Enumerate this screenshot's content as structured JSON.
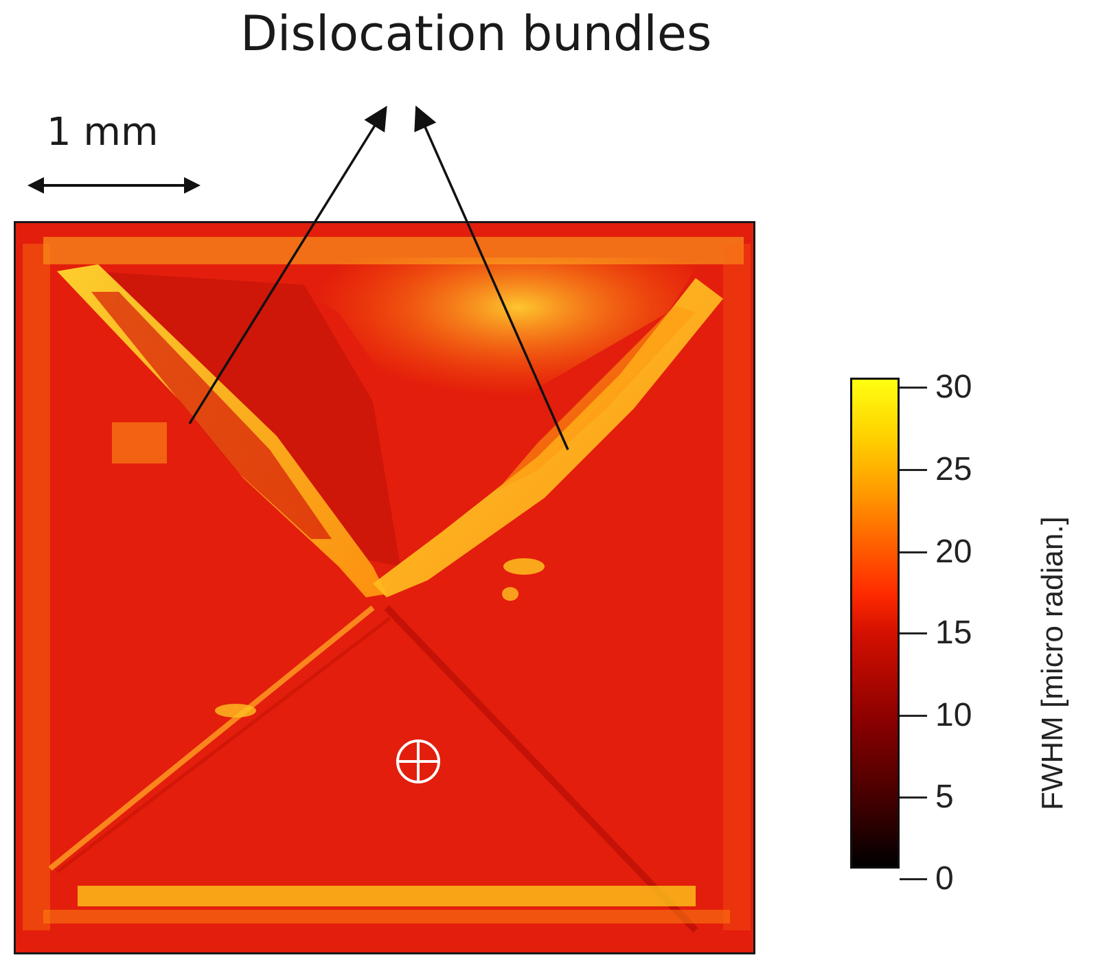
{
  "figure": {
    "annotation": "Dislocation bundles",
    "scale_bar_label": "1 mm"
  },
  "colorbar": {
    "title": "FWHM [micro radian.]",
    "ticks": [
      "30",
      "25",
      "20",
      "15",
      "10",
      "5",
      "0"
    ],
    "colormap": [
      "#000000",
      "#8b0000",
      "#ff2a00",
      "#ffa000",
      "#ffff10"
    ]
  },
  "colors": {
    "background_red": "#e8200c",
    "bright_yellow": "#ffd21a"
  }
}
